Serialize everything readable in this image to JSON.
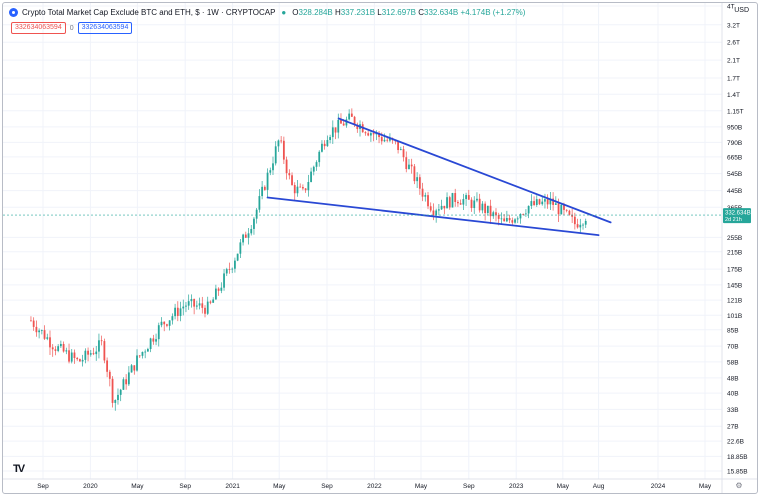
{
  "header": {
    "title": "Crypto Total Market Cap Exclude BTC and ETH, $ · 1W · CRYPTOCAP",
    "open_label": "O",
    "open": "328.284B",
    "high_label": "H",
    "high": "337.231B",
    "low_label": "L",
    "low": "312.697B",
    "close_label": "C",
    "close": "332.634B",
    "change": "+4.174B (+1.27%)",
    "box1": "332634063594",
    "box2": "0",
    "box3": "332634063594",
    "currency": "USD"
  },
  "colors": {
    "up": "#26a69a",
    "down": "#ef5350",
    "trendline": "#2948d4",
    "price_tag": "#26a69a"
  },
  "price_tag": {
    "value": "332.634B",
    "countdown": "2d 21h"
  },
  "chart_data": {
    "type": "candlestick",
    "y_scale": "log",
    "y_ticks": [
      {
        "label": "4T",
        "value": 4000
      },
      {
        "label": "3.2T",
        "value": 3200
      },
      {
        "label": "2.6T",
        "value": 2600
      },
      {
        "label": "2.1T",
        "value": 2100
      },
      {
        "label": "1.7T",
        "value": 1700
      },
      {
        "label": "1.4T",
        "value": 1400
      },
      {
        "label": "1.15T",
        "value": 1150
      },
      {
        "label": "950B",
        "value": 950
      },
      {
        "label": "790B",
        "value": 790
      },
      {
        "label": "665B",
        "value": 665
      },
      {
        "label": "545B",
        "value": 545
      },
      {
        "label": "445B",
        "value": 445
      },
      {
        "label": "365B",
        "value": 365
      },
      {
        "label": "255B",
        "value": 255
      },
      {
        "label": "215B",
        "value": 215
      },
      {
        "label": "175B",
        "value": 175
      },
      {
        "label": "145B",
        "value": 145
      },
      {
        "label": "121B",
        "value": 121
      },
      {
        "label": "101B",
        "value": 101
      },
      {
        "label": "85B",
        "value": 85
      },
      {
        "label": "70B",
        "value": 70
      },
      {
        "label": "58B",
        "value": 58
      },
      {
        "label": "48B",
        "value": 48
      },
      {
        "label": "40B",
        "value": 40
      },
      {
        "label": "33B",
        "value": 33
      },
      {
        "label": "27B",
        "value": 27
      },
      {
        "label": "22.6B",
        "value": 22.6
      },
      {
        "label": "18.85B",
        "value": 18.85
      },
      {
        "label": "15.85B",
        "value": 15.85
      }
    ],
    "x_ticks": [
      {
        "label": "Sep",
        "date": "2019-09"
      },
      {
        "label": "2020",
        "date": "2020-01"
      },
      {
        "label": "May",
        "date": "2020-05"
      },
      {
        "label": "Sep",
        "date": "2020-09"
      },
      {
        "label": "2021",
        "date": "2021-01"
      },
      {
        "label": "May",
        "date": "2021-05"
      },
      {
        "label": "Sep",
        "date": "2021-09"
      },
      {
        "label": "2022",
        "date": "2022-01"
      },
      {
        "label": "May",
        "date": "2022-05"
      },
      {
        "label": "Sep",
        "date": "2022-09"
      },
      {
        "label": "2023",
        "date": "2023-01"
      },
      {
        "label": "May",
        "date": "2023-05"
      },
      {
        "label": "Aug",
        "date": "2023-08"
      },
      {
        "label": "2024",
        "date": "2024-01"
      },
      {
        "label": "May",
        "date": "2024-05"
      }
    ],
    "trendlines": [
      {
        "name": "upper",
        "from": {
          "date": "2021-10",
          "value": 1050
        },
        "to": {
          "date": "2023-09",
          "value": 305
        }
      },
      {
        "name": "lower",
        "from": {
          "date": "2021-04",
          "value": 410
        },
        "to": {
          "date": "2023-08",
          "value": 262
        }
      }
    ],
    "weekly_close_anchors": [
      {
        "date": "2019-08",
        "value": 95
      },
      {
        "date": "2019-10",
        "value": 70
      },
      {
        "date": "2019-12",
        "value": 58
      },
      {
        "date": "2020-02",
        "value": 72
      },
      {
        "date": "2020-03",
        "value": 36
      },
      {
        "date": "2020-05",
        "value": 60
      },
      {
        "date": "2020-07",
        "value": 90
      },
      {
        "date": "2020-09",
        "value": 115
      },
      {
        "date": "2020-11",
        "value": 110
      },
      {
        "date": "2021-01",
        "value": 190
      },
      {
        "date": "2021-03",
        "value": 340
      },
      {
        "date": "2021-05",
        "value": 820
      },
      {
        "date": "2021-06",
        "value": 470
      },
      {
        "date": "2021-07",
        "value": 430
      },
      {
        "date": "2021-09",
        "value": 880
      },
      {
        "date": "2021-11",
        "value": 1050
      },
      {
        "date": "2022-01",
        "value": 870
      },
      {
        "date": "2022-03",
        "value": 760
      },
      {
        "date": "2022-05",
        "value": 450
      },
      {
        "date": "2022-06",
        "value": 360
      },
      {
        "date": "2022-08",
        "value": 410
      },
      {
        "date": "2022-10",
        "value": 370
      },
      {
        "date": "2022-12",
        "value": 300
      },
      {
        "date": "2023-02",
        "value": 370
      },
      {
        "date": "2023-04",
        "value": 390
      },
      {
        "date": "2023-06",
        "value": 300
      },
      {
        "date": "2023-07",
        "value": 332.6
      }
    ]
  }
}
